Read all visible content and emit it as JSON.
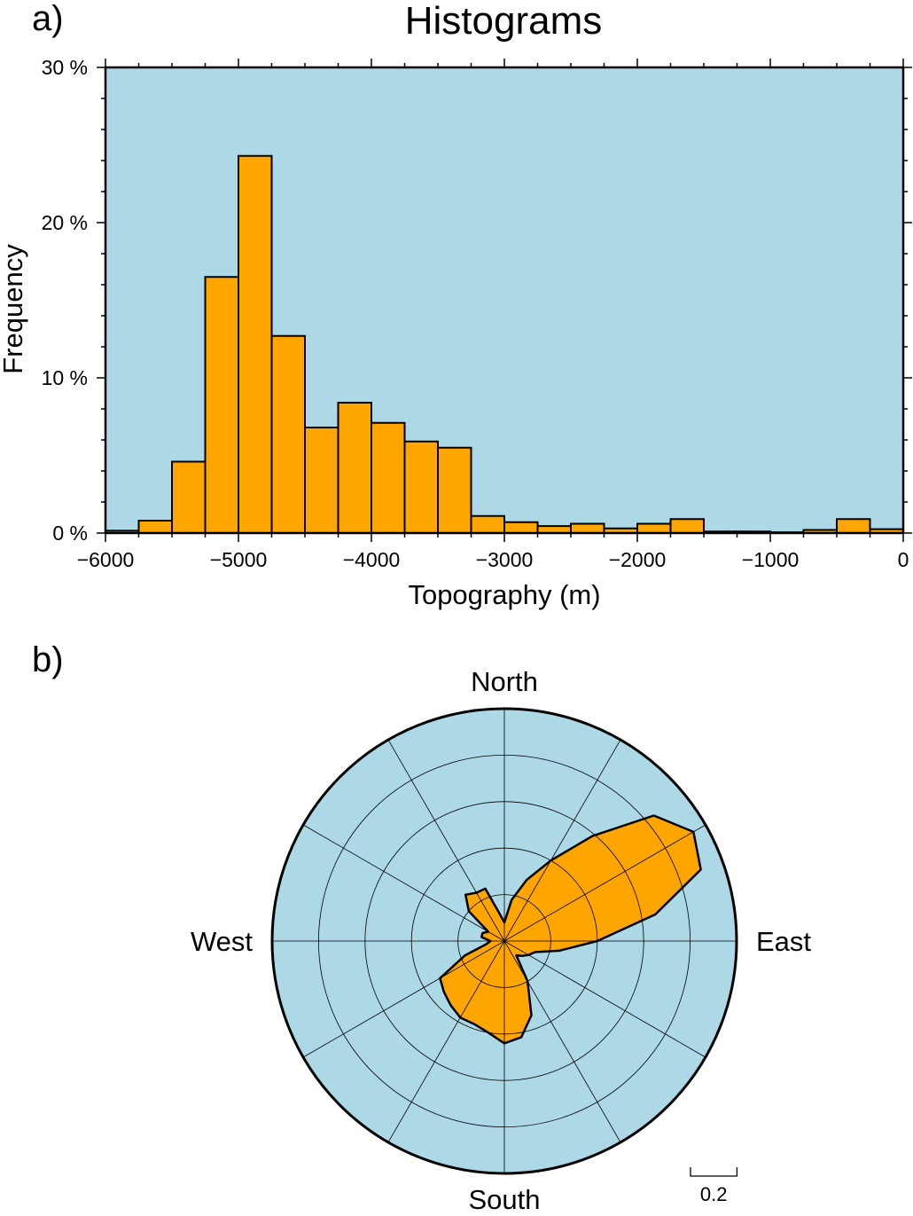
{
  "title": "Histograms",
  "panels": {
    "a_label": "a)",
    "b_label": "b)"
  },
  "colors": {
    "background": "#add8e6",
    "bar_fill": "#ffa500",
    "outline": "#000000"
  },
  "chart_data": [
    {
      "type": "bar",
      "title": "Histograms",
      "xlabel": "Topography (m)",
      "ylabel": "Frequency",
      "xlim": [
        -6000,
        0
      ],
      "ylim": [
        0,
        30
      ],
      "bin_width": 250,
      "x_ticks": [
        -6000,
        -5000,
        -4000,
        -3000,
        -2000,
        -1000,
        0
      ],
      "x_tick_labels": [
        "−6000",
        "−5000",
        "−4000",
        "−3000",
        "−2000",
        "−1000",
        "0"
      ],
      "y_ticks": [
        0,
        10,
        20,
        30
      ],
      "y_tick_labels": [
        "0 %",
        "10 %",
        "20 %",
        "30 %"
      ],
      "bin_starts": [
        -6000,
        -5750,
        -5500,
        -5250,
        -5000,
        -4750,
        -4500,
        -4250,
        -4000,
        -3750,
        -3500,
        -3250,
        -3000,
        -2750,
        -2500,
        -2250,
        -2000,
        -1750,
        -1500,
        -1250,
        -1000,
        -750,
        -500,
        -250
      ],
      "values": [
        0.15,
        0.8,
        4.6,
        16.5,
        24.3,
        12.7,
        6.8,
        8.4,
        7.1,
        5.9,
        5.5,
        1.1,
        0.7,
        0.45,
        0.6,
        0.3,
        0.6,
        0.9,
        0.1,
        0.1,
        0.05,
        0.2,
        0.9,
        0.25
      ],
      "grid": false
    },
    {
      "type": "rose",
      "direction_labels": {
        "north": "North",
        "east": "East",
        "south": "South",
        "west": "West"
      },
      "radial_ticks": [
        0.1,
        0.2,
        0.3,
        0.4,
        0.5
      ],
      "rmax": 0.5,
      "angular_grid_step_deg": 30,
      "scale_bar_value": 0.2,
      "scale_bar_label": "0.2",
      "azimuth_deg": [
        0,
        10,
        20,
        30,
        40,
        50,
        60,
        70,
        80,
        90,
        100,
        110,
        120,
        130,
        140,
        150,
        160,
        170,
        180,
        190,
        200,
        210,
        220,
        230,
        240,
        250,
        260,
        270,
        280,
        290,
        300,
        310,
        320,
        330,
        340,
        350
      ],
      "radius": [
        0.04,
        0.09,
        0.14,
        0.2,
        0.295,
        0.42,
        0.47,
        0.45,
        0.33,
        0.2,
        0.12,
        0.07,
        0.06,
        0.05,
        0.04,
        0.1,
        0.17,
        0.21,
        0.22,
        0.2,
        0.19,
        0.19,
        0.18,
        0.17,
        0.16,
        0.09,
        0.04,
        0.03,
        0.05,
        0.05,
        0.04,
        0.1,
        0.13,
        0.12,
        0.12,
        0.06
      ]
    }
  ]
}
